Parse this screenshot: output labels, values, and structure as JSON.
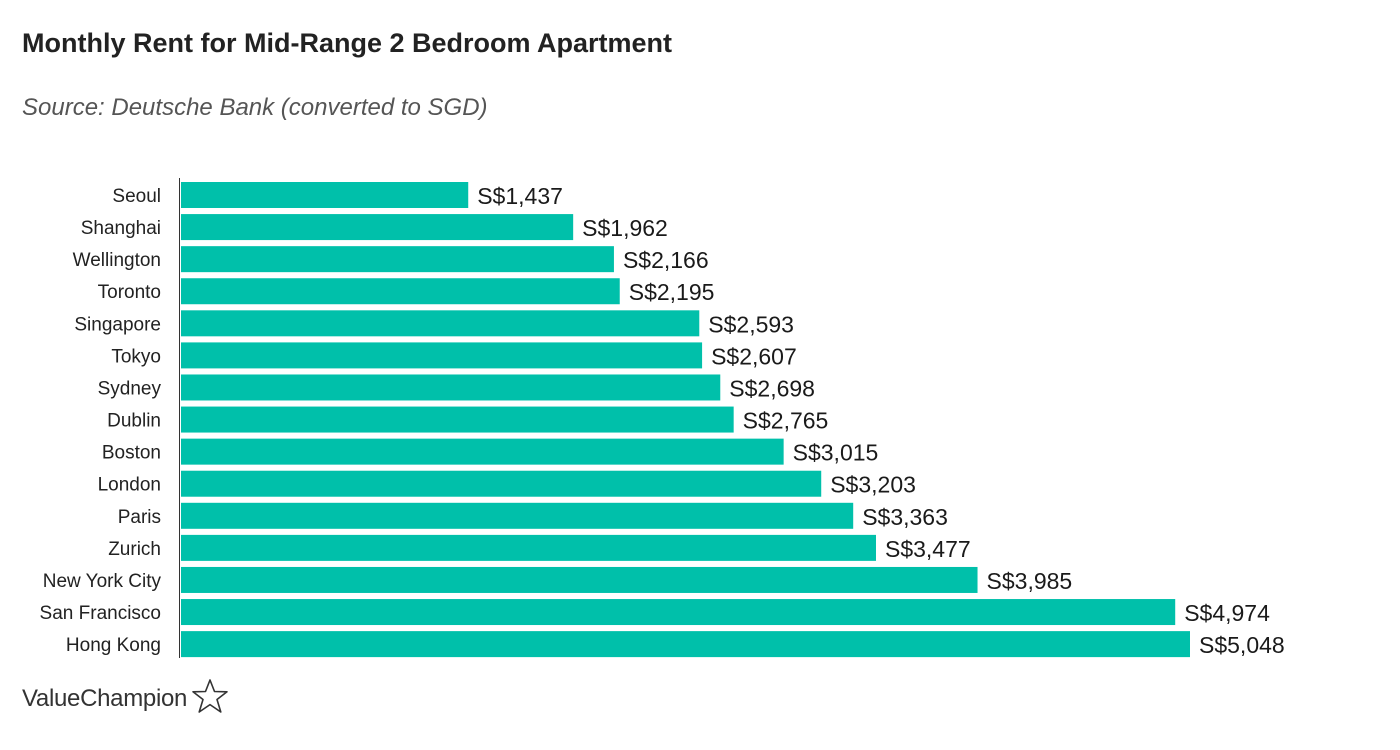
{
  "brand": {
    "name": "ValueChampion",
    "icon": "star-outline-icon"
  },
  "chart_data": {
    "type": "bar",
    "orientation": "horizontal",
    "title": "Monthly Rent for Mid-Range 2 Bedroom Apartment",
    "subtitle": "Source: Deutsche Bank (converted to SGD)",
    "categories": [
      "Seoul",
      "Shanghai",
      "Wellington",
      "Toronto",
      "Singapore",
      "Tokyo",
      "Sydney",
      "Dublin",
      "Boston",
      "London",
      "Paris",
      "Zurich",
      "New York City",
      "San Francisco",
      "Hong Kong"
    ],
    "values": [
      1437,
      1962,
      2166,
      2195,
      2593,
      2607,
      2698,
      2765,
      3015,
      3203,
      3363,
      3477,
      3985,
      4974,
      5048
    ],
    "value_labels": [
      "S$1,437",
      "S$1,962",
      "S$2,166",
      "S$2,195",
      "S$2,593",
      "S$2,607",
      "S$2,698",
      "S$2,765",
      "S$3,015",
      "S$3,203",
      "S$3,363",
      "S$3,477",
      "S$3,985",
      "S$4,974",
      "S$5,048"
    ],
    "xlim": [
      0,
      5048
    ],
    "bar_color": "#00c0aa",
    "grid": false,
    "legend": "none"
  }
}
